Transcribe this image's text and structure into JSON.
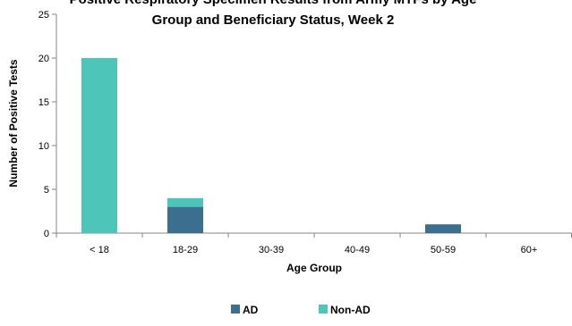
{
  "chart_data": {
    "type": "bar",
    "stacked": true,
    "title_lines": [
      "Positive Respiratory Specimen Results from Army MTFs by Age",
      "Group and Beneficiary Status, Week 2"
    ],
    "xlabel": "Age Group",
    "ylabel": "Number of Positive Tests",
    "categories": [
      "< 18",
      "18-29",
      "30-39",
      "40-49",
      "50-59",
      "60+"
    ],
    "series": [
      {
        "name": "AD",
        "color": "#3b6e8f",
        "values": [
          0,
          3,
          0,
          0,
          1,
          0
        ]
      },
      {
        "name": "Non-AD",
        "color": "#4dc5b9",
        "values": [
          20,
          1,
          0,
          0,
          0,
          0
        ]
      }
    ],
    "ylim": [
      0,
      25
    ],
    "yticks": [
      0,
      5,
      10,
      15,
      20,
      25
    ],
    "grid": false,
    "legend_position": "bottom"
  }
}
